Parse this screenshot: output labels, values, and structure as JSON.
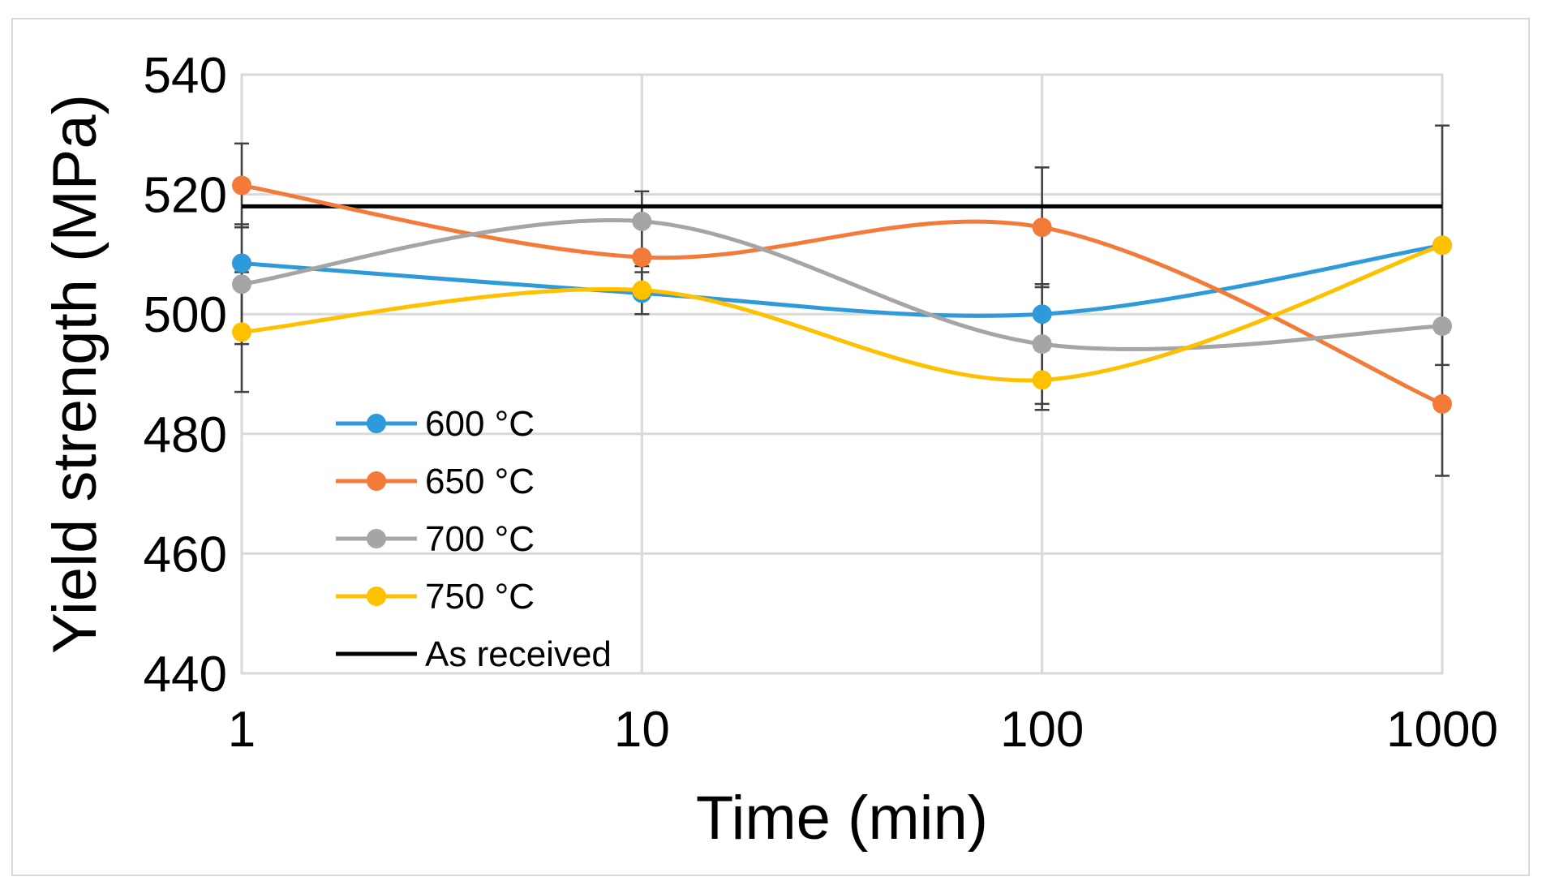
{
  "chart_data": {
    "type": "line",
    "title": "",
    "xlabel": "Time (min)",
    "ylabel": "Yield strength (MPa)",
    "x_scale": "log",
    "x": [
      1,
      10,
      100,
      1000
    ],
    "x_ticks": [
      "1",
      "10",
      "100",
      "1000"
    ],
    "ylim": [
      440,
      540
    ],
    "y_ticks": [
      "440",
      "460",
      "480",
      "500",
      "520",
      "540"
    ],
    "grid": true,
    "legend_position": "bottom-left inside",
    "series": [
      {
        "name": "600 °C",
        "color": "#2e9ad9",
        "values": [
          508.5,
          503.5,
          500,
          511.5
        ],
        "error": [
          0,
          3.5,
          0,
          0
        ]
      },
      {
        "name": "650 °C",
        "color": "#f47a3a",
        "values": [
          521.5,
          509.5,
          514.5,
          485
        ],
        "error": [
          7,
          0,
          10,
          12
        ]
      },
      {
        "name": "700 °C",
        "color": "#a5a5a5",
        "values": [
          505,
          515.5,
          495,
          498
        ],
        "error": [
          10,
          5,
          10,
          0
        ]
      },
      {
        "name": "750 °C",
        "color": "#ffc000",
        "values": [
          497,
          504,
          489,
          511.5
        ],
        "error": [
          10,
          4,
          5,
          20
        ]
      }
    ],
    "reference_line": {
      "name": "As received",
      "color": "#000000",
      "value": 518
    }
  }
}
